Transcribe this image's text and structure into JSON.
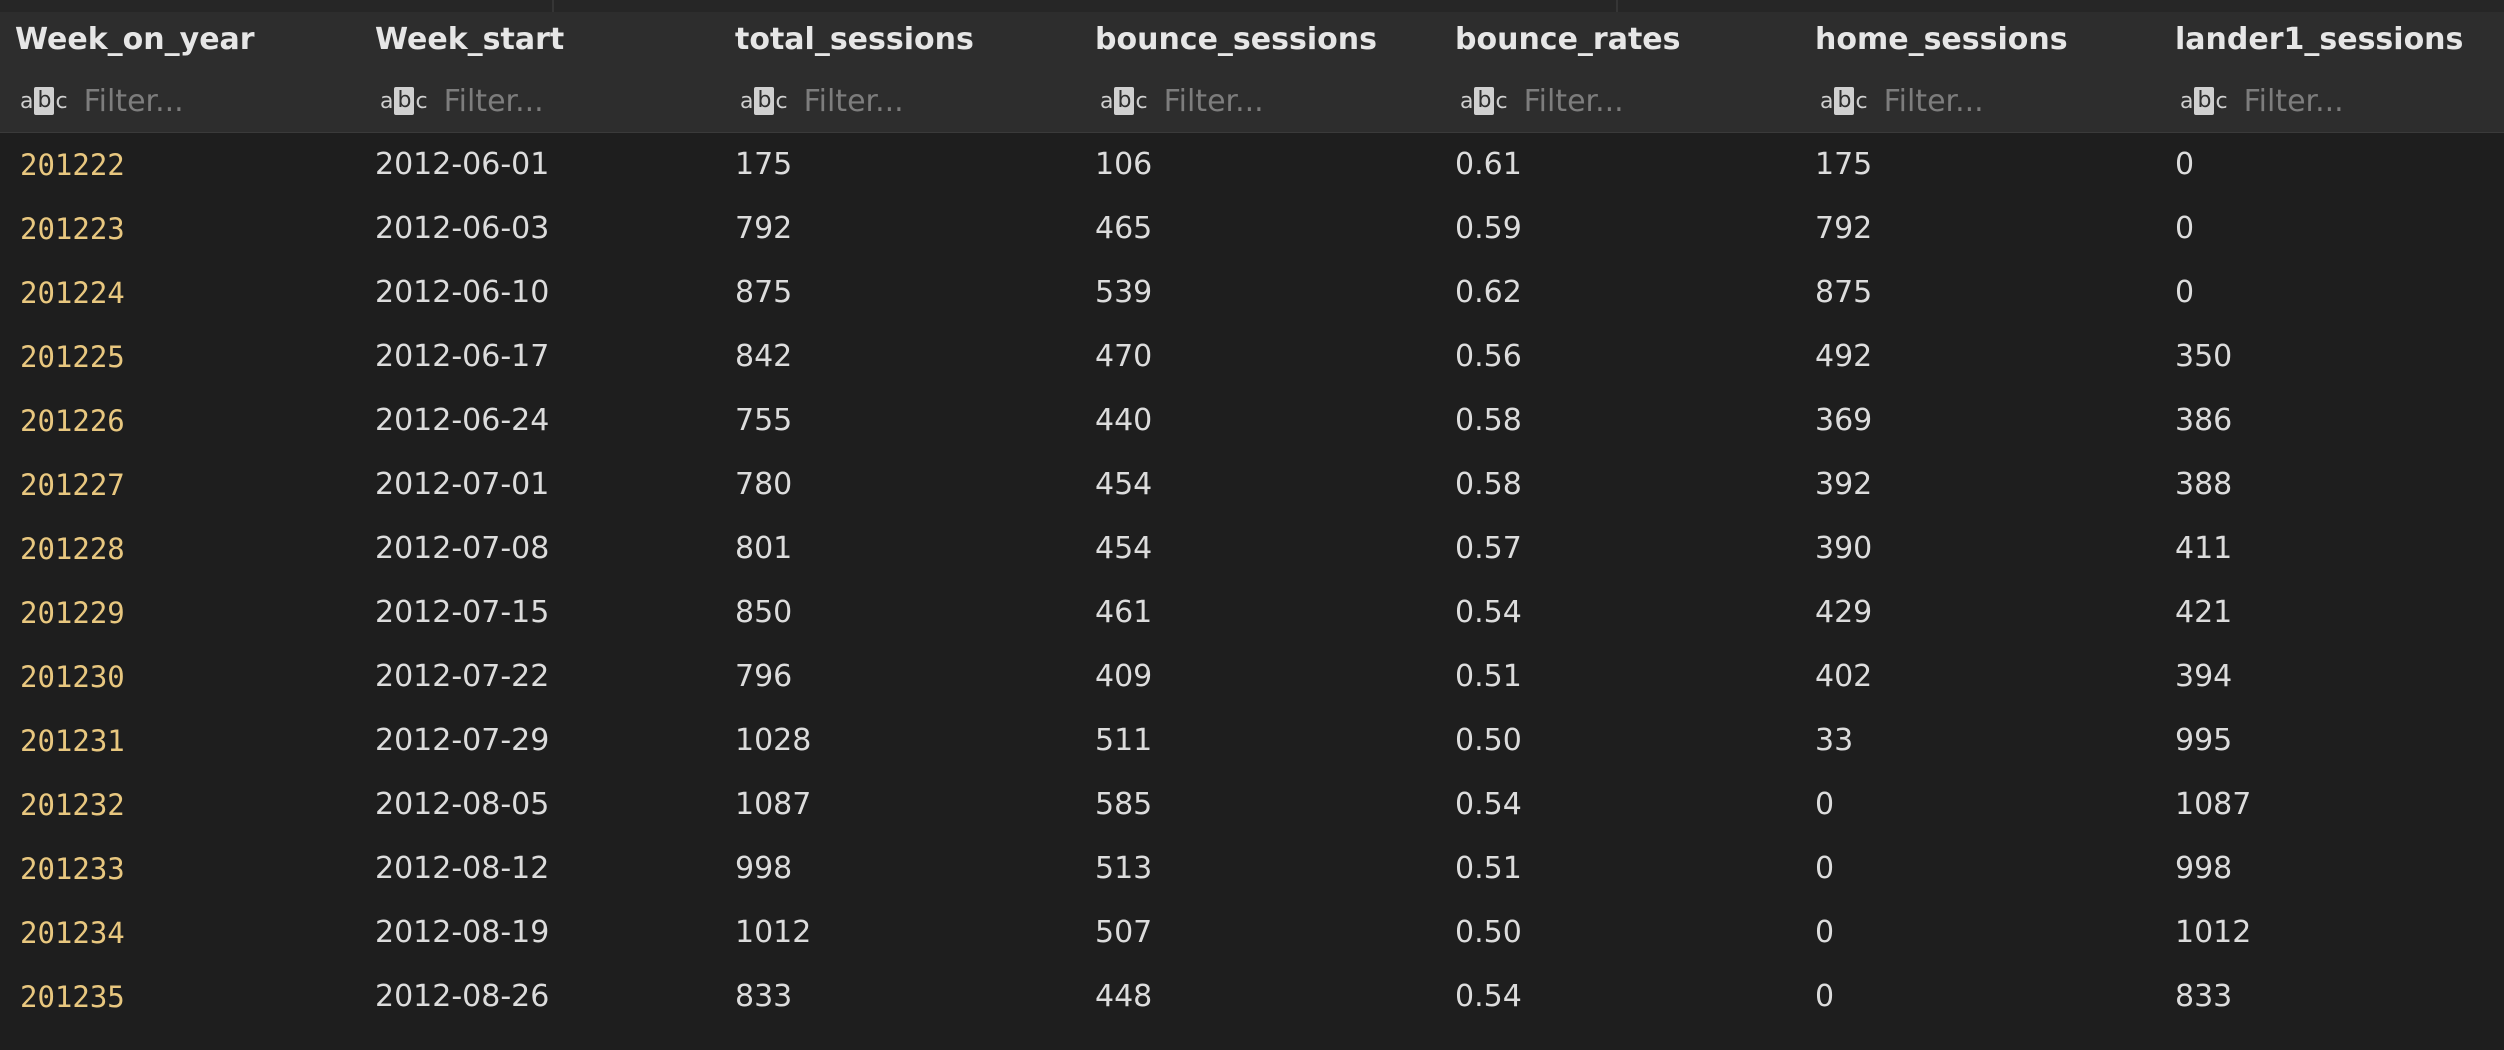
{
  "table": {
    "columns": [
      {
        "name": "Week_on_year",
        "placeholder": "Filter..."
      },
      {
        "name": "Week_start",
        "placeholder": "Filter..."
      },
      {
        "name": "total_sessions",
        "placeholder": "Filter..."
      },
      {
        "name": "bounce_sessions",
        "placeholder": "Filter..."
      },
      {
        "name": "bounce_rates",
        "placeholder": "Filter..."
      },
      {
        "name": "home_sessions",
        "placeholder": "Filter..."
      },
      {
        "name": "lander1_sessions",
        "placeholder": "Filter..."
      }
    ],
    "filter_icon": "abc-type-icon",
    "rows": [
      [
        "201222",
        "2012-06-01",
        "175",
        "106",
        "0.61",
        "175",
        "0"
      ],
      [
        "201223",
        "2012-06-03",
        "792",
        "465",
        "0.59",
        "792",
        "0"
      ],
      [
        "201224",
        "2012-06-10",
        "875",
        "539",
        "0.62",
        "875",
        "0"
      ],
      [
        "201225",
        "2012-06-17",
        "842",
        "470",
        "0.56",
        "492",
        "350"
      ],
      [
        "201226",
        "2012-06-24",
        "755",
        "440",
        "0.58",
        "369",
        "386"
      ],
      [
        "201227",
        "2012-07-01",
        "780",
        "454",
        "0.58",
        "392",
        "388"
      ],
      [
        "201228",
        "2012-07-08",
        "801",
        "454",
        "0.57",
        "390",
        "411"
      ],
      [
        "201229",
        "2012-07-15",
        "850",
        "461",
        "0.54",
        "429",
        "421"
      ],
      [
        "201230",
        "2012-07-22",
        "796",
        "409",
        "0.51",
        "402",
        "394"
      ],
      [
        "201231",
        "2012-07-29",
        "1028",
        "511",
        "0.50",
        "33",
        "995"
      ],
      [
        "201232",
        "2012-08-05",
        "1087",
        "585",
        "0.54",
        "0",
        "1087"
      ],
      [
        "201233",
        "2012-08-12",
        "998",
        "513",
        "0.51",
        "0",
        "998"
      ],
      [
        "201234",
        "2012-08-19",
        "1012",
        "507",
        "0.50",
        "0",
        "1012"
      ],
      [
        "201235",
        "2012-08-26",
        "833",
        "448",
        "0.54",
        "0",
        "833"
      ]
    ]
  },
  "colors": {
    "background": "#1e1e1e",
    "header_background": "#2d2d2d",
    "index_text": "#e8c77f",
    "cell_text": "#dcdcdc"
  }
}
